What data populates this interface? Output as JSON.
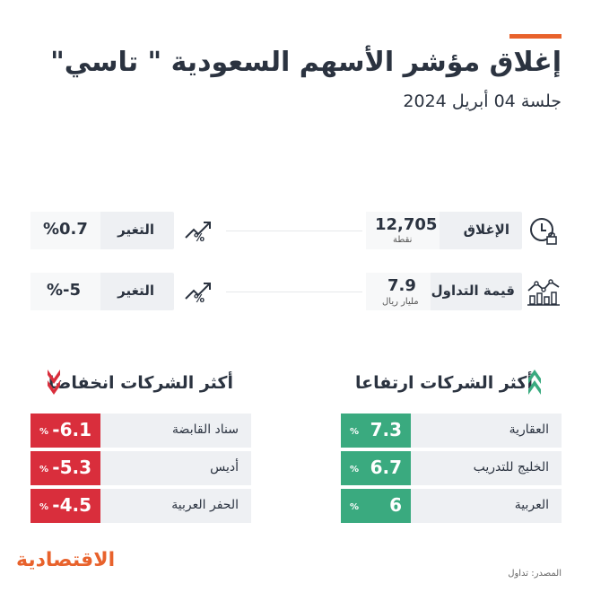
{
  "header": {
    "title": "إغلاق مؤشر الأسهم السعودية \" تاسي\"",
    "subtitle": "جلسة 04 أبريل 2024"
  },
  "stats": {
    "close_label": "الإغلاق",
    "close_value": "12,705",
    "close_unit": "نقطة",
    "close_change_label": "التغير",
    "close_change_value": "%0.7",
    "trading_label": "قيمة التداول",
    "trading_value": "7.9",
    "trading_unit": "مليار ريال",
    "trading_change_label": "التغير",
    "trading_change_value": "%-5"
  },
  "gainers": {
    "title": "أكثر الشركات ارتفاعا",
    "rows": [
      {
        "name": "العقارية",
        "value": "7.3",
        "sym": "%"
      },
      {
        "name": "الخليج للتدريب",
        "value": "6.7",
        "sym": "%"
      },
      {
        "name": "العربية",
        "value": "6",
        "sym": "%"
      }
    ]
  },
  "losers": {
    "title": "أكثر الشركات انخفاضا",
    "rows": [
      {
        "name": "سناد القابضة",
        "value": "-6.1",
        "sym": "%"
      },
      {
        "name": "أديس",
        "value": "-5.3",
        "sym": "%"
      },
      {
        "name": "الحفر العربية",
        "value": "-4.5",
        "sym": "%"
      }
    ]
  },
  "footer": {
    "logo": "الاقتصادية",
    "source": "المصدر: تداول"
  },
  "colors": {
    "accent": "#e8622c",
    "up": "#3aaa7f",
    "down": "#d92e3c"
  }
}
